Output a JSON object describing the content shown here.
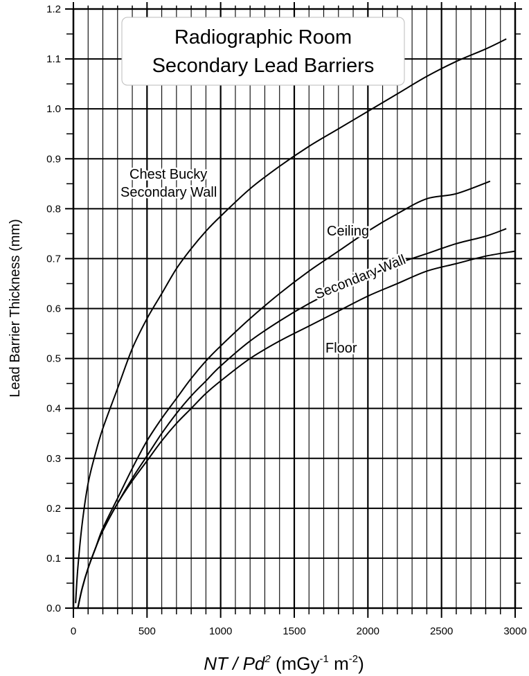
{
  "chart_data": {
    "type": "line",
    "title": [
      "Radiographic Room",
      "Secondary Lead Barriers"
    ],
    "ylabel": "Lead Barrier Thickness (mm)",
    "xlabel": {
      "nt": "NT",
      "slash": " / ",
      "pd": "Pd",
      "sq": "2",
      "unit_open": " (mGy",
      "unit_exp1": "-1",
      "unit_m": " m",
      "unit_exp2": "-2",
      "unit_close": ")"
    },
    "xlim": [
      0,
      3000
    ],
    "ylim": [
      0.0,
      1.2
    ],
    "x_ticks": [
      0,
      500,
      1000,
      1500,
      2000,
      2500,
      3000
    ],
    "y_ticks": [
      0.0,
      0.1,
      0.2,
      0.3,
      0.4,
      0.5,
      0.6,
      0.7,
      0.8,
      0.9,
      1.0,
      1.1,
      1.2
    ],
    "y_tick_labels": [
      "0.0",
      "0.1",
      "0.2",
      "0.3",
      "0.4",
      "0.5",
      "0.6",
      "0.7",
      "0.8",
      "0.9",
      "1.0",
      "1.1",
      "1.2"
    ],
    "grid": {
      "major_x_step": 500,
      "minor_x_step": 100,
      "major_y_step": 0.1,
      "minor_y_step": 0.05
    },
    "series": [
      {
        "label_lines": [
          "Chest Bucky",
          "Secondary Wall"
        ],
        "x": [
          15,
          30,
          60,
          100,
          150,
          200,
          300,
          400,
          500,
          600,
          700,
          800,
          900,
          1000,
          1200,
          1400,
          1600,
          1800,
          2000,
          2200,
          2400,
          2600,
          2800,
          2940
        ],
        "y": [
          0.01,
          0.08,
          0.17,
          0.25,
          0.31,
          0.36,
          0.44,
          0.52,
          0.58,
          0.63,
          0.68,
          0.72,
          0.755,
          0.785,
          0.84,
          0.885,
          0.925,
          0.96,
          0.995,
          1.03,
          1.065,
          1.095,
          1.12,
          1.14
        ]
      },
      {
        "label_lines": [
          "Ceiling"
        ],
        "x": [
          30,
          60,
          100,
          150,
          200,
          300,
          400,
          500,
          600,
          700,
          800,
          900,
          1000,
          1200,
          1400,
          1600,
          1800,
          2000,
          2200,
          2400,
          2600,
          2830
        ],
        "y": [
          0.0,
          0.04,
          0.08,
          0.12,
          0.16,
          0.22,
          0.28,
          0.335,
          0.38,
          0.42,
          0.46,
          0.495,
          0.525,
          0.58,
          0.63,
          0.675,
          0.715,
          0.755,
          0.79,
          0.82,
          0.83,
          0.855
        ]
      },
      {
        "label_lines": [
          "Secondary Wall"
        ],
        "x": [
          30,
          60,
          100,
          150,
          200,
          300,
          400,
          500,
          600,
          700,
          800,
          900,
          1000,
          1200,
          1400,
          1600,
          1800,
          2000,
          2200,
          2400,
          2600,
          2800,
          2940
        ],
        "y": [
          0.0,
          0.04,
          0.08,
          0.12,
          0.155,
          0.21,
          0.26,
          0.305,
          0.35,
          0.39,
          0.425,
          0.455,
          0.485,
          0.535,
          0.575,
          0.61,
          0.64,
          0.665,
          0.69,
          0.71,
          0.73,
          0.745,
          0.76
        ]
      },
      {
        "label_lines": [
          "Floor"
        ],
        "x": [
          30,
          60,
          100,
          150,
          200,
          300,
          400,
          500,
          600,
          700,
          800,
          900,
          1000,
          1200,
          1400,
          1600,
          1800,
          2000,
          2200,
          2400,
          2600,
          2800,
          3000
        ],
        "y": [
          0.0,
          0.04,
          0.08,
          0.12,
          0.155,
          0.21,
          0.255,
          0.295,
          0.335,
          0.37,
          0.4,
          0.43,
          0.455,
          0.5,
          0.535,
          0.565,
          0.595,
          0.625,
          0.65,
          0.675,
          0.69,
          0.705,
          0.715
        ]
      }
    ]
  }
}
